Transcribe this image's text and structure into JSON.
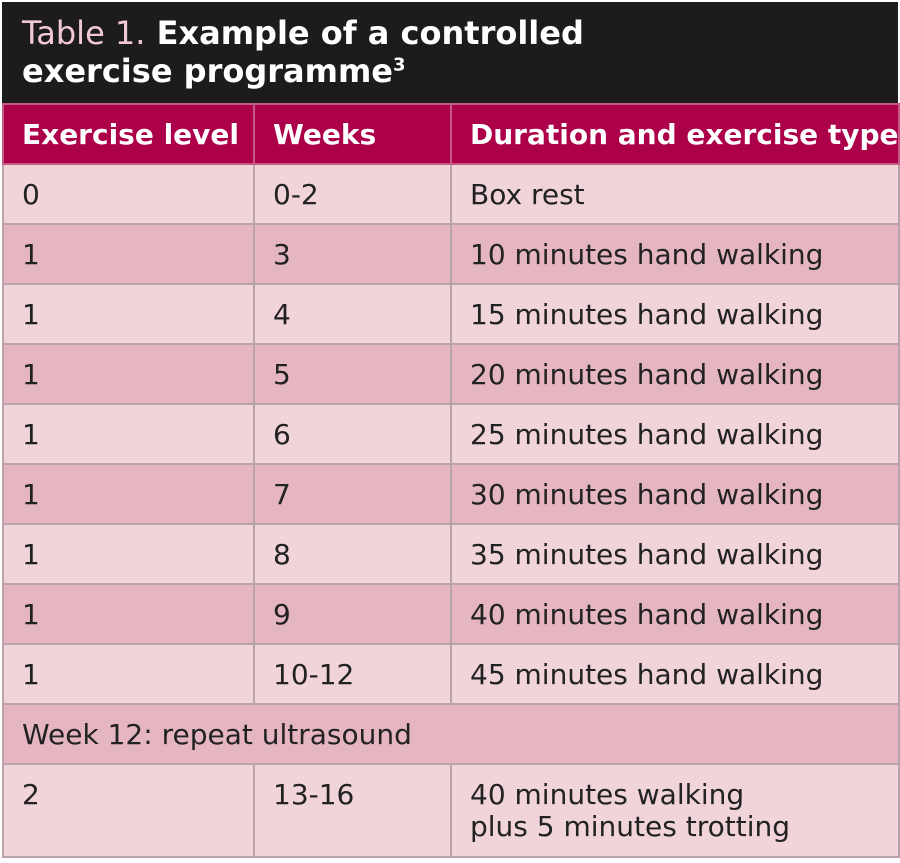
{
  "title": {
    "label": "Table 1.",
    "line1": "Example of a controlled",
    "line2": "exercise programme",
    "sup": "3"
  },
  "header": {
    "col1": "Exercise level",
    "col2": "Weeks",
    "col3": "Duration and exercise type"
  },
  "rows": [
    {
      "level": "0",
      "weeks": "0-2",
      "activity": "Box rest"
    },
    {
      "level": "1",
      "weeks": "3",
      "activity": "10 minutes hand walking"
    },
    {
      "level": "1",
      "weeks": "4",
      "activity": "15 minutes hand walking"
    },
    {
      "level": "1",
      "weeks": "5",
      "activity": "20 minutes hand walking"
    },
    {
      "level": "1",
      "weeks": "6",
      "activity": "25 minutes hand walking"
    },
    {
      "level": "1",
      "weeks": "7",
      "activity": "30 minutes hand walking"
    },
    {
      "level": "1",
      "weeks": "8",
      "activity": "35 minutes hand walking"
    },
    {
      "level": "1",
      "weeks": "9",
      "activity": "40 minutes hand walking"
    },
    {
      "level": "1",
      "weeks": "10-12",
      "activity": "45 minutes hand walking"
    }
  ],
  "note_row": "Week 12: repeat ultrasound",
  "final_row": {
    "level": "2",
    "weeks": "13-16",
    "activity_line1": "40 minutes walking",
    "activity_line2": "plus 5 minutes trotting"
  }
}
